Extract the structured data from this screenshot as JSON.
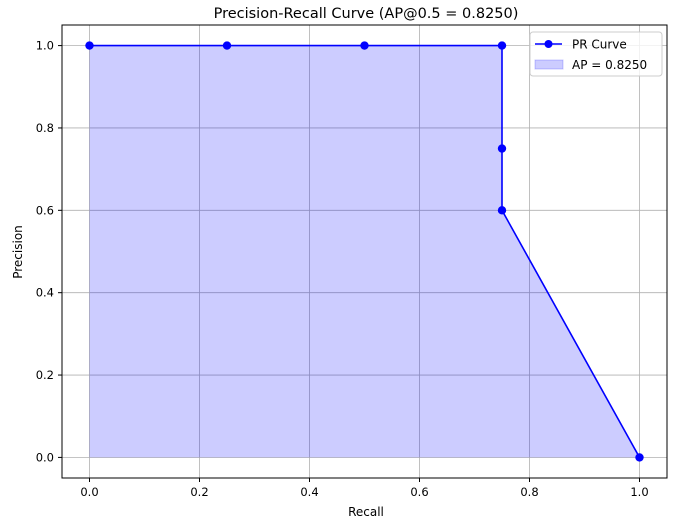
{
  "chart_data": {
    "type": "line",
    "title": "Precision-Recall Curve (AP@0.5 = 0.8250)",
    "xlabel": "Recall",
    "ylabel": "Precision",
    "xlim": [
      -0.05,
      1.05
    ],
    "ylim": [
      -0.05,
      1.05
    ],
    "grid": true,
    "xticks": [
      0.0,
      0.2,
      0.4,
      0.6,
      0.8,
      1.0
    ],
    "yticks": [
      0.0,
      0.2,
      0.4,
      0.6,
      0.8,
      1.0
    ],
    "xtick_labels": [
      "0.0",
      "0.2",
      "0.4",
      "0.6",
      "0.8",
      "1.0"
    ],
    "ytick_labels": [
      "0.0",
      "0.2",
      "0.4",
      "0.6",
      "0.8",
      "1.0"
    ],
    "series": [
      {
        "name": "PR Curve",
        "x": [
          0.0,
          0.25,
          0.5,
          0.75,
          0.75,
          0.75,
          1.0
        ],
        "y": [
          1.0,
          1.0,
          1.0,
          1.0,
          0.75,
          0.6,
          0.0
        ],
        "color": "#0000ff",
        "marker": "circle"
      }
    ],
    "fill": {
      "name": "AP = 0.8250",
      "color": "#0000ff",
      "alpha": 0.2
    },
    "legend": {
      "placement": "top-right",
      "entries": [
        "PR Curve",
        "AP = 0.8250"
      ]
    }
  }
}
